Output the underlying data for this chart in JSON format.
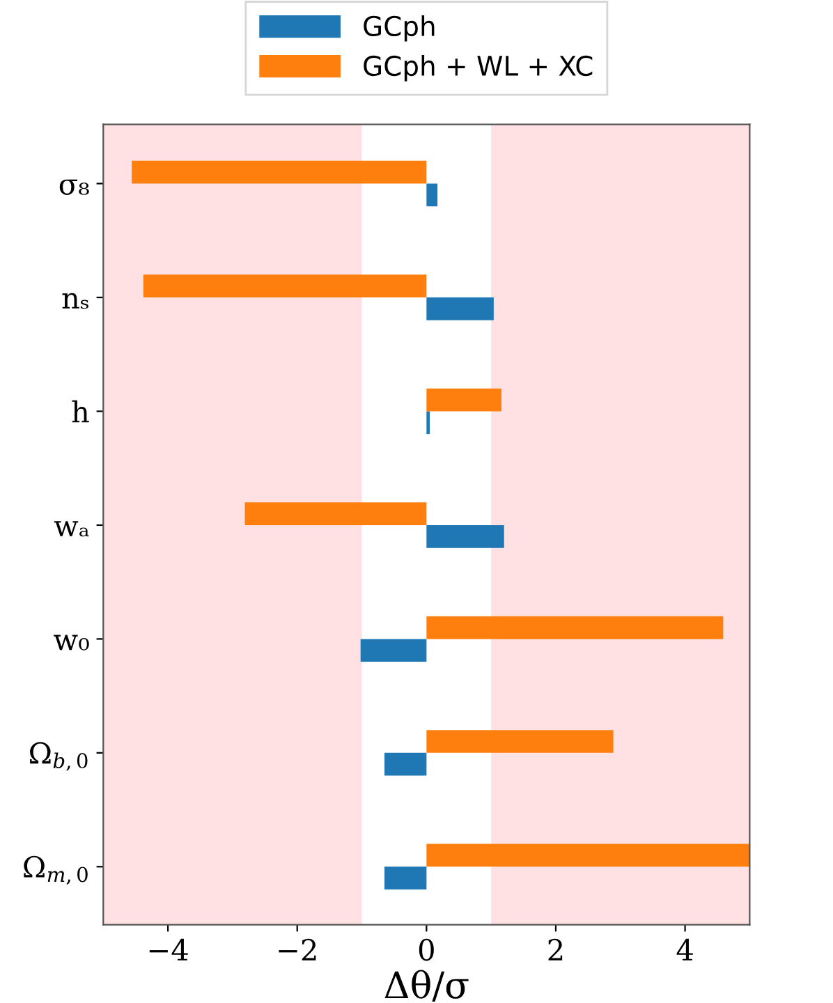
{
  "chart_data": {
    "type": "bar",
    "orientation": "horizontal",
    "xlabel": "Δθ/σ",
    "categories": [
      "σ₈",
      "nₛ",
      "h",
      "wₐ",
      "w₀",
      "Ω$_{b,0}$",
      "Ω$_{m,0}$"
    ],
    "series": [
      {
        "name": "GCph",
        "color": "#1f77b4",
        "values": [
          0.17,
          1.04,
          0.05,
          1.2,
          -1.02,
          -0.65,
          -0.65
        ]
      },
      {
        "name": "GCph + WL + XC",
        "color": "#ff7f0e",
        "values": [
          -4.56,
          -4.38,
          1.16,
          -2.81,
          4.59,
          2.89,
          5.0
        ]
      }
    ],
    "xlim": [
      -5,
      5
    ],
    "xticks": [
      -4,
      -2,
      0,
      2,
      4
    ],
    "bands": [
      {
        "axis": "x",
        "from": -5,
        "to": -1,
        "color": "#ffe1e4"
      },
      {
        "axis": "x",
        "from": 1,
        "to": 5,
        "color": "#ffe1e4"
      }
    ],
    "legend": "top",
    "grid": false
  }
}
